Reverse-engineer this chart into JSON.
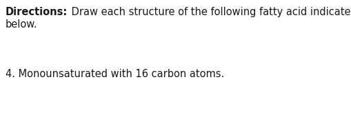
{
  "line1_bold": "Directions:",
  "line1_normal": " Draw each structure of the following fatty acid indicated",
  "line2": "below.",
  "item4": "4. Monounsaturated with 16 carbon atoms.",
  "background_color": "#ffffff",
  "text_color": "#1a1a1a",
  "font_size_main": 10.5,
  "fig_width": 5.1,
  "fig_height": 1.64,
  "dpi": 100
}
